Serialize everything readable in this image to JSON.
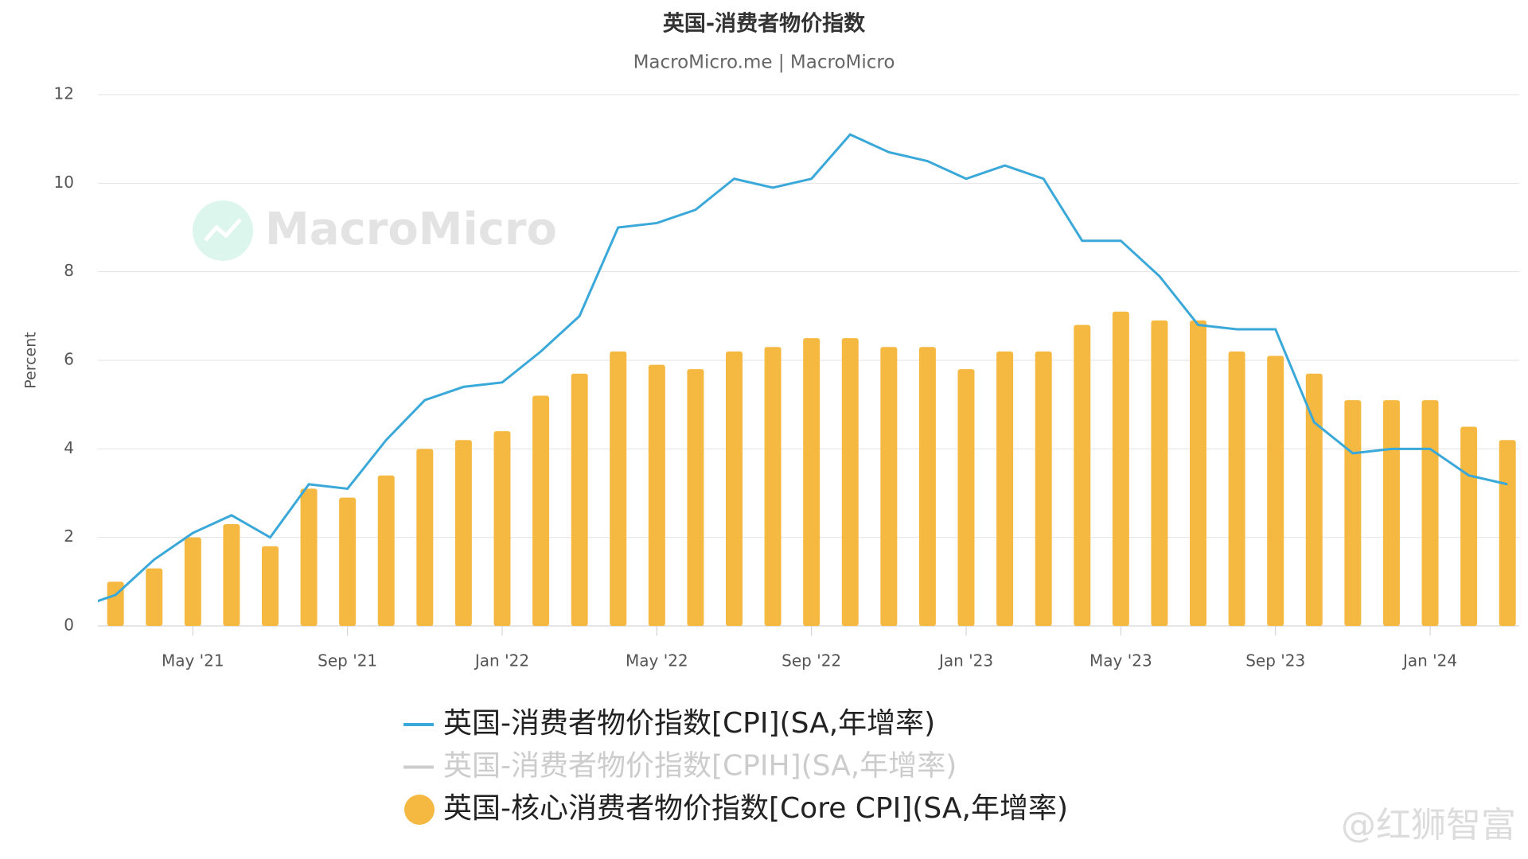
{
  "chart_data": {
    "type": "bar-line",
    "title": "英国-消费者物价指数",
    "subtitle": "MacroMicro.me | MacroMicro",
    "y_label": "Percent",
    "watermark": "MacroMicro",
    "credit": "@红狮智富",
    "categories": [
      "2021-02",
      "2021-03",
      "2021-04",
      "2021-05",
      "2021-06",
      "2021-07",
      "2021-08",
      "2021-09",
      "2021-10",
      "2021-11",
      "2021-12",
      "2022-01",
      "2022-02",
      "2022-03",
      "2022-04",
      "2022-05",
      "2022-06",
      "2022-07",
      "2022-08",
      "2022-09",
      "2022-10",
      "2022-11",
      "2022-12",
      "2023-01",
      "2023-02",
      "2023-03",
      "2023-04",
      "2023-05",
      "2023-06",
      "2023-07",
      "2023-08",
      "2023-09",
      "2023-10",
      "2023-11",
      "2023-12",
      "2024-01",
      "2024-02",
      "2024-03"
    ],
    "xticks": [
      {
        "value": "2021-05",
        "label": "May '21"
      },
      {
        "value": "2021-09",
        "label": "Sep '21"
      },
      {
        "value": "2022-01",
        "label": "Jan '22"
      },
      {
        "value": "2022-05",
        "label": "May '22"
      },
      {
        "value": "2022-09",
        "label": "Sep '22"
      },
      {
        "value": "2023-01",
        "label": "Jan '23"
      },
      {
        "value": "2023-05",
        "label": "May '23"
      },
      {
        "value": "2023-09",
        "label": "Sep '23"
      },
      {
        "value": "2024-01",
        "label": "Jan '24"
      }
    ],
    "ylim": [
      0,
      12
    ],
    "yticks": [
      0,
      2,
      4,
      6,
      8,
      10,
      12
    ],
    "grid": true,
    "series": [
      {
        "name": "英国-消费者物价指数[CPI](SA,年增率)",
        "kind": "line",
        "color": "#3aa8d8",
        "values": [
          0.4,
          0.7,
          1.5,
          2.1,
          2.5,
          2.0,
          3.2,
          3.1,
          4.2,
          5.1,
          5.4,
          5.5,
          6.2,
          7.0,
          9.0,
          9.1,
          9.4,
          10.1,
          9.9,
          10.1,
          11.1,
          10.7,
          10.5,
          10.1,
          10.4,
          10.1,
          8.7,
          8.7,
          7.9,
          6.8,
          6.7,
          6.7,
          4.6,
          3.9,
          4.0,
          4.0,
          3.4,
          3.2
        ]
      },
      {
        "name": "英国-消费者物价指数[CPIH](SA,年增率)",
        "kind": "line",
        "color": "#cccccc",
        "visible": false
      },
      {
        "name": "英国-核心消费者物价指数[Core CPI](SA,年增率)",
        "kind": "bar",
        "color": "#f5b942",
        "values": [
          null,
          1.0,
          1.3,
          2.0,
          2.3,
          1.8,
          3.1,
          2.9,
          3.4,
          4.0,
          4.2,
          4.4,
          5.2,
          5.7,
          6.2,
          5.9,
          5.8,
          6.2,
          6.3,
          6.5,
          6.5,
          6.3,
          6.3,
          5.8,
          6.2,
          6.2,
          6.8,
          7.1,
          6.9,
          6.9,
          6.2,
          6.1,
          5.7,
          5.1,
          5.1,
          5.1,
          4.5,
          4.2
        ]
      }
    ]
  }
}
